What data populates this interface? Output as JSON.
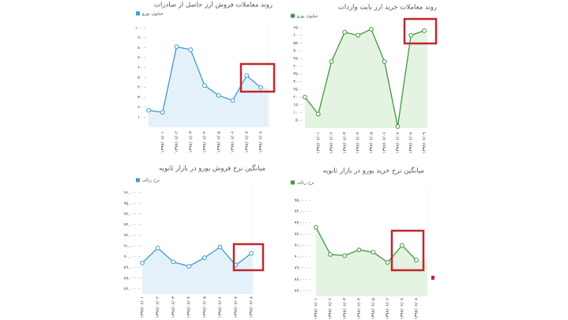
{
  "chart_data": [
    {
      "type": "line",
      "title": "روند معاملات فروش ارز حاصل از صادرات",
      "categories": [
        null,
        "۱۳۹۷/۰۶/۰۱",
        "۱۳۹۷/۰۶/۰۲",
        "۱۳۹۷/۰۶/۰۳",
        "۱۳۹۷/۰۶/۰۴",
        "۱۳۹۷/۰۶/۰۵",
        "۱۳۹۷/۰۶/۰۶",
        "۱۳۹۷/۰۶/۰۷",
        "۱۳۹۷/۰۶/۰۸"
      ],
      "series": [
        {
          "name": "میلیون یورو",
          "color": "#3d9dc8",
          "values": [
            17,
            15,
            81,
            78,
            42,
            32,
            27,
            52,
            40
          ]
        }
      ],
      "ylim": [
        0,
        105
      ],
      "yticks": [
        {
          "value": 10,
          "label": "۱۰"
        },
        {
          "value": 20,
          "label": "۲۰"
        },
        {
          "value": 30,
          "label": "۳۰"
        },
        {
          "value": 40,
          "label": "۴۰"
        },
        {
          "value": 50,
          "label": "۵۰"
        },
        {
          "value": 60,
          "label": "۶۰"
        },
        {
          "value": 70,
          "label": "۷۰"
        },
        {
          "value": 80,
          "label": "۸۰"
        },
        {
          "value": 90,
          "label": "۹۰"
        },
        {
          "value": 100,
          "label": "۱۰۰"
        }
      ],
      "grid": false
    },
    {
      "type": "line",
      "title": "روند معاملات خرید ارز بابت واردات",
      "categories": [
        null,
        "۱۳۹۷/۰۶/۰۱",
        "۱۳۹۷/۰۶/۰۲",
        "۱۳۹۷/۰۶/۰۳",
        "۱۳۹۷/۰۶/۰۴",
        "۱۳۹۷/۰۶/۰۵",
        "۱۳۹۷/۰۶/۰۶",
        "۱۳۹۷/۰۶/۰۷",
        "۱۳۹۷/۰۶/۰۸",
        "۱۳۹۷/۰۶/۰۹"
      ],
      "series": [
        {
          "name": "میلیون یورو",
          "color": "#3c9a3c",
          "values": [
            20,
            9,
            43,
            62,
            60,
            64,
            43,
            1,
            60,
            63
          ]
        }
      ],
      "ylim": [
        0,
        67
      ],
      "yticks": [
        {
          "value": 5,
          "label": "۵"
        },
        {
          "value": 10,
          "label": "۱۰"
        },
        {
          "value": 15,
          "label": "۱۵"
        },
        {
          "value": 20,
          "label": "۲۰"
        },
        {
          "value": 25,
          "label": "۲۵"
        },
        {
          "value": 30,
          "label": "۳۰"
        },
        {
          "value": 35,
          "label": "۳۵"
        },
        {
          "value": 40,
          "label": "۴۰"
        },
        {
          "value": 45,
          "label": "۴۵"
        },
        {
          "value": 50,
          "label": "۵۰"
        },
        {
          "value": 55,
          "label": "۵۵"
        },
        {
          "value": 60,
          "label": "۶۰"
        },
        {
          "value": 65,
          "label": "۶۵"
        }
      ],
      "grid": false
    },
    {
      "type": "line",
      "title": "میانگین نرخ فروش یورو در بازار ثانویه",
      "categories": [
        "۱۳۹۷/۰۶/۰۱",
        "۱۳۹۷/۰۶/۰۲",
        "۱۳۹۷/۰۶/۰۳",
        "۱۳۹۷/۰۶/۰۴",
        "۱۳۹۷/۰۶/۰۵",
        "۱۳۹۷/۰۶/۰۶",
        "۱۳۹۷/۰۶/۰۷",
        "۱۳۹۷/۰۶/۰۸"
      ],
      "series": [
        {
          "name": "نرخ ریالی",
          "color": "#3d9dc8",
          "values": [
            89400,
            90800,
            89500,
            89100,
            89900,
            90900,
            89200,
            90300
          ]
        }
      ],
      "ylim": [
        86500,
        96500
      ],
      "yticks": [
        {
          "value": 87000,
          "label": "۸۷,۰۰۰"
        },
        {
          "value": 88000,
          "label": "۸۸,۰۰۰"
        },
        {
          "value": 89000,
          "label": "۸۹,۰۰۰"
        },
        {
          "value": 90000,
          "label": "۹۰,۰۰۰"
        },
        {
          "value": 91000,
          "label": "۹۱,۰۰۰"
        },
        {
          "value": 92000,
          "label": "۹۲,۰۰۰"
        },
        {
          "value": 93000,
          "label": "۹۳,۰۰۰"
        },
        {
          "value": 94000,
          "label": "۹۴,۰۰۰"
        },
        {
          "value": 95000,
          "label": "۹۵,۰۰۰"
        },
        {
          "value": 96000,
          "label": "۹۶,۰۰۰"
        }
      ],
      "grid": false
    },
    {
      "type": "line",
      "title": "میانگین نرخ خرید یورو در بازار ثانویه",
      "categories": [
        "۱۳۹۷/۰۶/۰۱",
        "۱۳۹۷/۰۶/۰۲",
        "۱۳۹۷/۰۶/۰۳",
        "۱۳۹۷/۰۶/۰۴",
        "۱۳۹۷/۰۶/۰۵",
        "۱۳۹۷/۰۶/۰۶",
        "۱۳۹۷/۰۶/۰۷",
        "۱۳۹۷/۰۶/۰۸"
      ],
      "series": [
        {
          "name": "نرخ ریالی",
          "color": "#3c9a3c",
          "values": [
            92600,
            90200,
            90100,
            90600,
            90400,
            89500,
            91000,
            89700
          ]
        }
      ],
      "ylim": [
        86500,
        96000
      ],
      "yticks": [
        {
          "value": 87000,
          "label": "۸۷,۰۰۰"
        },
        {
          "value": 88000,
          "label": "۸۸,۰۰۰"
        },
        {
          "value": 89000,
          "label": "۸۹,۰۰۰"
        },
        {
          "value": 90000,
          "label": "۹۰,۰۰۰"
        },
        {
          "value": 91000,
          "label": "۹۱,۰۰۰"
        },
        {
          "value": 92000,
          "label": "۹۲,۰۰۰"
        },
        {
          "value": 93000,
          "label": "۹۳,۰۰۰"
        },
        {
          "value": 94000,
          "label": "۹۴,۰۰۰"
        },
        {
          "value": 95000,
          "label": "۹۵,۰۰۰"
        }
      ],
      "grid": false
    }
  ]
}
